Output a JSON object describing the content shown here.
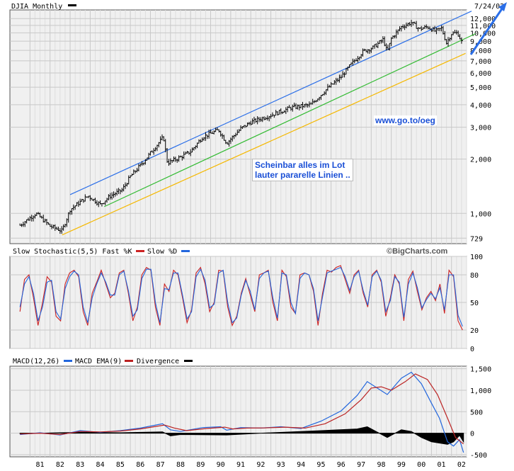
{
  "colors": {
    "fast": "#cc2222",
    "slow": "#2266dd",
    "macd": "#2266dd",
    "macd_ema": "#bb2222",
    "divergence": "#000000",
    "trend_blue": "#2a6ee8",
    "trend_green": "#33bb33",
    "trend_yellow": "#f5b800",
    "grid": "#c8c8c8",
    "panel_bg": "#f0f0f0"
  },
  "panel_titles": {
    "price": "DJIA Monthly",
    "stoch": "Slow Stochastic(5,5) Fast %K",
    "stoch_slow": "Slow %D",
    "macd": "MACD(12,26)",
    "macd_ema": "MACD EMA(9)",
    "divergence": "Divergence"
  },
  "date_label": "7/24/02",
  "watermark": "©BigCharts.com",
  "annotations": {
    "box_line1": "Scheinbar alles im Lot",
    "box_line2": "lauter pararelle Linien ..",
    "url": "www.go.to/oeg"
  },
  "chart_data": [
    {
      "type": "candlestick",
      "title": "DJIA Monthly",
      "scale": "log",
      "y_ticks": [
        "12,000",
        "11,000",
        "10,000",
        "9,000",
        "8,000",
        "7,000",
        "6,000",
        "5,000",
        "4,000",
        "3,000",
        "2,000",
        "1,000",
        "729"
      ],
      "x_ticks": [
        "81",
        "82",
        "83",
        "84",
        "85",
        "86",
        "87",
        "88",
        "89",
        "90",
        "91",
        "92",
        "93",
        "94",
        "95",
        "96",
        "97",
        "98",
        "99",
        "00",
        "01",
        "02"
      ],
      "close_points": [
        [
          1980.5,
          860
        ],
        [
          1981.3,
          1000
        ],
        [
          1982.0,
          850
        ],
        [
          1982.6,
          800
        ],
        [
          1983.0,
          1050
        ],
        [
          1983.9,
          1250
        ],
        [
          1984.5,
          1120
        ],
        [
          1985.0,
          1250
        ],
        [
          1985.6,
          1350
        ],
        [
          1986.0,
          1600
        ],
        [
          1986.6,
          1900
        ],
        [
          1987.2,
          2300
        ],
        [
          1987.65,
          2650
        ],
        [
          1987.85,
          1900
        ],
        [
          1988.5,
          2050
        ],
        [
          1989.0,
          2200
        ],
        [
          1989.6,
          2650
        ],
        [
          1990.4,
          2900
        ],
        [
          1990.8,
          2450
        ],
        [
          1991.5,
          2950
        ],
        [
          1992.0,
          3200
        ],
        [
          1993.0,
          3500
        ],
        [
          1994.0,
          3850
        ],
        [
          1995.0,
          4000
        ],
        [
          1995.8,
          4900
        ],
        [
          1996.5,
          5700
        ],
        [
          1997.0,
          6700
        ],
        [
          1997.6,
          7900
        ],
        [
          1998.1,
          8300
        ],
        [
          1998.6,
          9200
        ],
        [
          1998.8,
          7800
        ],
        [
          1999.0,
          9300
        ],
        [
          1999.5,
          10800
        ],
        [
          2000.0,
          11400
        ],
        [
          2000.4,
          10500
        ],
        [
          2000.8,
          10800
        ],
        [
          2001.2,
          10200
        ],
        [
          2001.5,
          10600
        ],
        [
          2001.75,
          8800
        ],
        [
          2002.0,
          9900
        ],
        [
          2002.3,
          10000
        ],
        [
          2002.55,
          8700
        ]
      ],
      "trend_lines": [
        {
          "name": "upper",
          "from": [
            1983.0,
            1270
          ],
          "to": [
            2003.0,
            13200
          ]
        },
        {
          "name": "middle",
          "from": [
            1984.7,
            1090
          ],
          "to": [
            2003.2,
            9900
          ]
        },
        {
          "name": "lower",
          "from": [
            1982.6,
            760
          ],
          "to": [
            2002.7,
            7700
          ]
        }
      ]
    },
    {
      "type": "line",
      "title": "Slow Stochastic(5,5) Fast %K",
      "y_ticks": [
        "100",
        "80",
        "50",
        "20",
        "0"
      ],
      "ylim": [
        0,
        100
      ],
      "series": [
        {
          "name": "Fast %K",
          "values": [
            40,
            75,
            80,
            55,
            25,
            50,
            78,
            72,
            35,
            30,
            70,
            82,
            85,
            78,
            40,
            25,
            60,
            72,
            85,
            70,
            55,
            60,
            82,
            85,
            60,
            30,
            45,
            80,
            88,
            85,
            45,
            25,
            70,
            62,
            85,
            80,
            55,
            28,
            42,
            82,
            88,
            70,
            40,
            50,
            85,
            84,
            45,
            25,
            35,
            60,
            76,
            58,
            40,
            80,
            82,
            85,
            50,
            30,
            85,
            78,
            45,
            38,
            80,
            82,
            80,
            62,
            25,
            60,
            85,
            83,
            88,
            90,
            75,
            60,
            80,
            85,
            60,
            45,
            80,
            85,
            72,
            35,
            55,
            80,
            70,
            30,
            75,
            84,
            62,
            42,
            55,
            62,
            52,
            70,
            38,
            85,
            78,
            30,
            20
          ]
        },
        {
          "name": "Slow %D",
          "values": [
            45,
            70,
            78,
            60,
            30,
            45,
            72,
            74,
            40,
            32,
            65,
            78,
            84,
            80,
            45,
            28,
            55,
            70,
            82,
            72,
            58,
            58,
            80,
            84,
            63,
            35,
            42,
            76,
            86,
            86,
            50,
            28,
            65,
            64,
            82,
            82,
            58,
            32,
            40,
            78,
            86,
            74,
            44,
            48,
            82,
            85,
            50,
            28,
            33,
            58,
            74,
            62,
            42,
            76,
            82,
            84,
            55,
            33,
            82,
            80,
            50,
            38,
            76,
            82,
            80,
            65,
            30,
            56,
            82,
            84,
            86,
            88,
            78,
            63,
            78,
            84,
            63,
            47,
            78,
            84,
            74,
            40,
            52,
            78,
            72,
            34,
            70,
            82,
            66,
            44,
            53,
            60,
            54,
            66,
            42,
            80,
            80,
            36,
            24
          ]
        }
      ]
    },
    {
      "type": "line",
      "title": "MACD(12,26)",
      "y_ticks": [
        "1,500",
        "1,000",
        "500",
        "0",
        "-500"
      ],
      "ylim": [
        -550,
        1560
      ],
      "series": [
        {
          "name": "MACD",
          "points": [
            [
              1980.5,
              -30
            ],
            [
              1981.5,
              10
            ],
            [
              1982.5,
              -40
            ],
            [
              1983.5,
              60
            ],
            [
              1984.5,
              20
            ],
            [
              1985.5,
              60
            ],
            [
              1986.5,
              120
            ],
            [
              1987.6,
              220
            ],
            [
              1988.0,
              80
            ],
            [
              1988.5,
              40
            ],
            [
              1989.6,
              130
            ],
            [
              1990.5,
              150
            ],
            [
              1990.8,
              70
            ],
            [
              1991.5,
              130
            ],
            [
              1992.5,
              120
            ],
            [
              1993.5,
              150
            ],
            [
              1994.5,
              110
            ],
            [
              1995.5,
              280
            ],
            [
              1996.5,
              520
            ],
            [
              1997.3,
              880
            ],
            [
              1997.8,
              1200
            ],
            [
              1998.3,
              1050
            ],
            [
              1998.8,
              900
            ],
            [
              1999.5,
              1280
            ],
            [
              2000.0,
              1420
            ],
            [
              2000.5,
              1150
            ],
            [
              2001.0,
              700
            ],
            [
              2001.4,
              350
            ],
            [
              2001.8,
              -200
            ],
            [
              2002.1,
              -300
            ],
            [
              2002.4,
              -150
            ],
            [
              2002.6,
              -450
            ]
          ]
        },
        {
          "name": "MACD EMA(9)",
          "points": [
            [
              1980.5,
              -20
            ],
            [
              1981.5,
              0
            ],
            [
              1982.5,
              -30
            ],
            [
              1983.5,
              40
            ],
            [
              1984.5,
              30
            ],
            [
              1985.5,
              50
            ],
            [
              1986.5,
              100
            ],
            [
              1987.7,
              190
            ],
            [
              1988.2,
              120
            ],
            [
              1988.8,
              60
            ],
            [
              1989.8,
              110
            ],
            [
              1990.7,
              140
            ],
            [
              1991.1,
              100
            ],
            [
              1991.8,
              120
            ],
            [
              1992.7,
              125
            ],
            [
              1993.7,
              140
            ],
            [
              1994.7,
              120
            ],
            [
              1995.7,
              220
            ],
            [
              1996.7,
              450
            ],
            [
              1997.5,
              780
            ],
            [
              1998.0,
              1050
            ],
            [
              1998.5,
              1080
            ],
            [
              1999.0,
              1000
            ],
            [
              1999.7,
              1200
            ],
            [
              2000.2,
              1380
            ],
            [
              2000.8,
              1250
            ],
            [
              2001.3,
              900
            ],
            [
              2001.8,
              350
            ],
            [
              2002.2,
              -100
            ],
            [
              2002.6,
              -250
            ]
          ]
        },
        {
          "name": "Divergence",
          "points": [
            [
              1980.5,
              -10
            ],
            [
              1983.5,
              20
            ],
            [
              1985.5,
              10
            ],
            [
              1987.6,
              30
            ],
            [
              1988.0,
              -60
            ],
            [
              1988.5,
              -30
            ],
            [
              1990.8,
              -40
            ],
            [
              1992.5,
              0
            ],
            [
              1995.5,
              60
            ],
            [
              1997.3,
              100
            ],
            [
              1997.8,
              150
            ],
            [
              1998.8,
              -100
            ],
            [
              1999.5,
              80
            ],
            [
              2000.0,
              40
            ],
            [
              2000.5,
              -100
            ],
            [
              2001.0,
              -200
            ],
            [
              2001.8,
              -260
            ],
            [
              2002.1,
              -200
            ],
            [
              2002.4,
              -50
            ],
            [
              2002.6,
              -200
            ]
          ]
        }
      ]
    }
  ]
}
